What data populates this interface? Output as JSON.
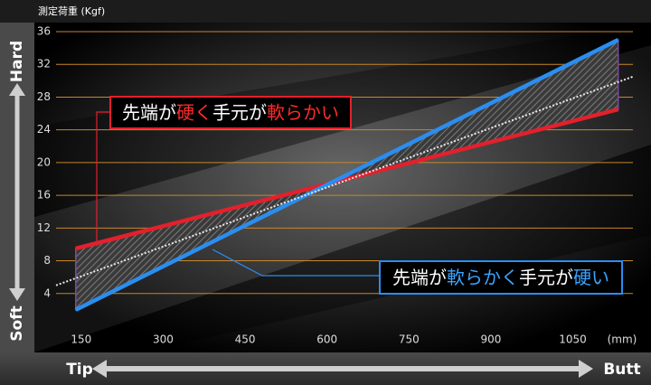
{
  "chart_data": {
    "type": "line",
    "y_axis_label": "測定荷重 (Kgf)",
    "x_axis_unit": "(mm)",
    "ylim": [
      0,
      36
    ],
    "yticks": [
      4,
      8,
      12,
      16,
      20,
      24,
      28,
      32,
      36
    ],
    "xlim": [
      104,
      1160
    ],
    "xticks": [
      150,
      300,
      450,
      600,
      750,
      900,
      1050
    ],
    "grid": true,
    "grid_color": "#c8862a",
    "series": [
      {
        "color": "#e3202c",
        "x": [
          140,
          1133
        ],
        "values": [
          9.5,
          26.5
        ]
      },
      {
        "color": "#2a8ef0",
        "x": [
          140,
          1133
        ],
        "values": [
          2,
          35
        ]
      },
      {
        "color": "#e8e8e8",
        "dashed": true,
        "x": [
          104,
          1160
        ],
        "values": [
          5,
          30.5
        ]
      }
    ],
    "annotations": [
      {
        "border": "#e3202c",
        "parts": [
          {
            "text": "先端が",
            "color": "#ffffff"
          },
          {
            "text": "硬く",
            "color": "#ff2a2a"
          },
          {
            "text": "手元が",
            "color": "#ffffff"
          },
          {
            "text": "軟らかい",
            "color": "#ff2a2a"
          }
        ]
      },
      {
        "border": "#2a8ef0",
        "parts": [
          {
            "text": "先端が",
            "color": "#ffffff"
          },
          {
            "text": "軟らかく",
            "color": "#3aa4ff"
          },
          {
            "text": "手元が",
            "color": "#ffffff"
          },
          {
            "text": "硬い",
            "color": "#3aa4ff"
          }
        ]
      }
    ],
    "hard_label": "Hard",
    "soft_label": "Soft",
    "tip_label": "Tip",
    "butt_label": "Butt"
  }
}
